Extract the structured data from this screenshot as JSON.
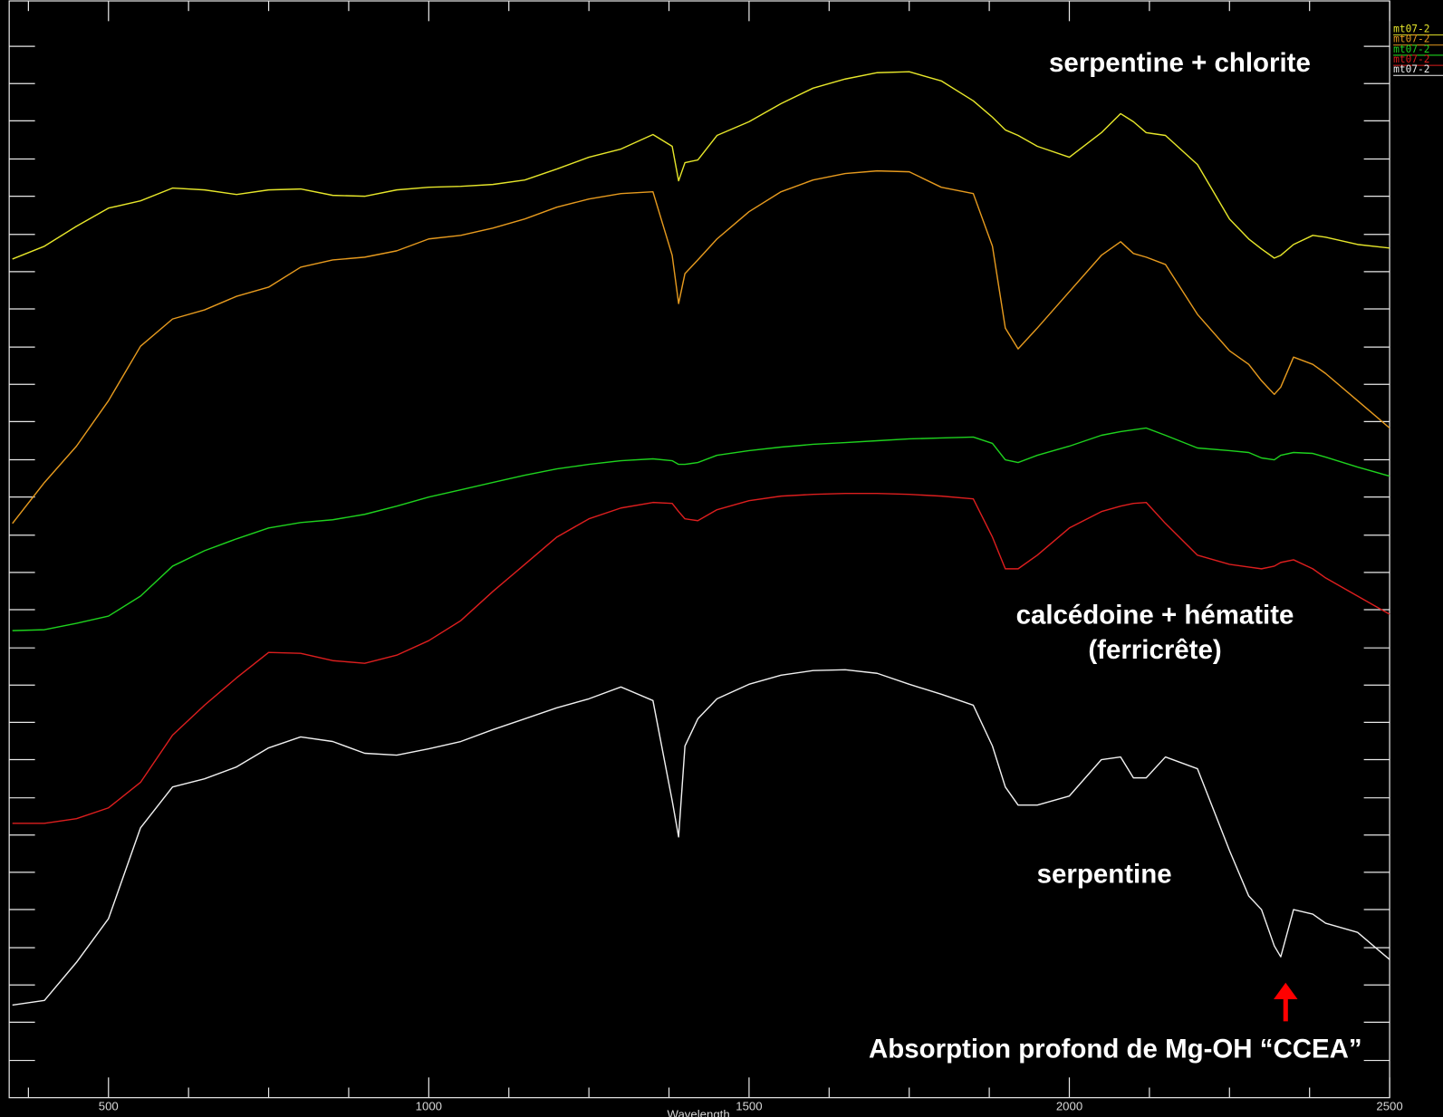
{
  "chart_data": {
    "type": "line",
    "x_label": "Wavelength",
    "x": [
      350,
      400,
      450,
      500,
      550,
      600,
      650,
      700,
      750,
      800,
      850,
      900,
      950,
      1000,
      1050,
      1100,
      1150,
      1200,
      1250,
      1300,
      1350,
      1380,
      1390,
      1400,
      1420,
      1450,
      1500,
      1550,
      1600,
      1650,
      1700,
      1750,
      1800,
      1850,
      1880,
      1900,
      1920,
      1950,
      2000,
      2050,
      2080,
      2100,
      2120,
      2150,
      2200,
      2250,
      2280,
      2300,
      2320,
      2330,
      2350,
      2380,
      2400,
      2450,
      2500
    ],
    "xlim": [
      345,
      2500
    ],
    "xticks": [
      500,
      1000,
      1500,
      2000,
      2500
    ],
    "xminorticks": [
      375,
      625,
      750,
      875,
      1125,
      1250,
      1375,
      1625,
      1750,
      1875,
      2125,
      2250,
      2375
    ],
    "ylim": [
      -7,
      1200
    ],
    "yticks": [
      34,
      76,
      117,
      158,
      200,
      241,
      282,
      323,
      365,
      406,
      447,
      488,
      530,
      571,
      612,
      654,
      695,
      737,
      778,
      819,
      861,
      902,
      943,
      985,
      1026,
      1068,
      1109,
      1150
    ],
    "series": [
      {
        "name": "mt07-2",
        "color": "#e6e62a",
        "values": [
          916,
          930,
          952,
          972,
          980,
          994,
          992,
          987,
          992,
          993,
          986,
          985,
          992,
          995,
          996,
          998,
          1003,
          1015,
          1028,
          1037,
          1053,
          1040,
          1002,
          1022,
          1025,
          1052,
          1067,
          1087,
          1104,
          1114,
          1121,
          1122,
          1112,
          1090,
          1072,
          1058,
          1052,
          1040,
          1028,
          1055,
          1076,
          1067,
          1055,
          1052,
          1020,
          960,
          938,
          927,
          917,
          920,
          932,
          942,
          940,
          932,
          928
        ]
      },
      {
        "name": "mt07-2",
        "color": "#e69a1e",
        "values": [
          625,
          670,
          710,
          760,
          820,
          850,
          860,
          875,
          885,
          907,
          915,
          918,
          925,
          938,
          942,
          950,
          960,
          973,
          982,
          988,
          990,
          920,
          867,
          900,
          915,
          938,
          968,
          990,
          1003,
          1010,
          1013,
          1012,
          995,
          988,
          930,
          840,
          817,
          840,
          880,
          920,
          935,
          922,
          918,
          910,
          855,
          815,
          800,
          782,
          767,
          775,
          808,
          800,
          790,
          760,
          730
        ]
      },
      {
        "name": "mt07-2",
        "color": "#1ed21e",
        "values": [
          507,
          508,
          515,
          523,
          545,
          578,
          595,
          608,
          620,
          626,
          629,
          635,
          644,
          654,
          662,
          670,
          678,
          685,
          690,
          694,
          696,
          694,
          690,
          690,
          692,
          700,
          705,
          709,
          712,
          714,
          716,
          718,
          719,
          720,
          713,
          695,
          692,
          700,
          710,
          722,
          726,
          728,
          730,
          722,
          708,
          705,
          703,
          697,
          695,
          700,
          703,
          702,
          698,
          687,
          677
        ]
      },
      {
        "name": "mt07-2",
        "color": "#dc1e1e",
        "values": [
          295,
          295,
          300,
          312,
          340,
          392,
          425,
          455,
          483,
          482,
          474,
          471,
          480,
          496,
          518,
          550,
          580,
          610,
          630,
          642,
          648,
          647,
          638,
          630,
          628,
          640,
          650,
          655,
          657,
          658,
          658,
          657,
          655,
          652,
          610,
          575,
          575,
          590,
          620,
          638,
          644,
          647,
          648,
          625,
          590,
          580,
          577,
          575,
          578,
          582,
          585,
          575,
          565,
          545,
          525
        ]
      },
      {
        "name": "mt07-2",
        "color": "#f0f0f0",
        "values": [
          95,
          100,
          142,
          190,
          290,
          335,
          344,
          357,
          378,
          390,
          385,
          372,
          370,
          377,
          385,
          398,
          410,
          422,
          432,
          445,
          430,
          320,
          280,
          380,
          410,
          432,
          448,
          458,
          463,
          464,
          460,
          448,
          437,
          425,
          380,
          335,
          315,
          315,
          325,
          365,
          368,
          345,
          345,
          368,
          355,
          265,
          215,
          200,
          160,
          148,
          200,
          195,
          185,
          175,
          145
        ]
      }
    ],
    "annotations": [
      "serpentine + chlorite",
      "calcédoine + hématite",
      "(ferricrête)",
      "serpentine",
      "Absorption profond de Mg-OH “CCEA”"
    ]
  }
}
